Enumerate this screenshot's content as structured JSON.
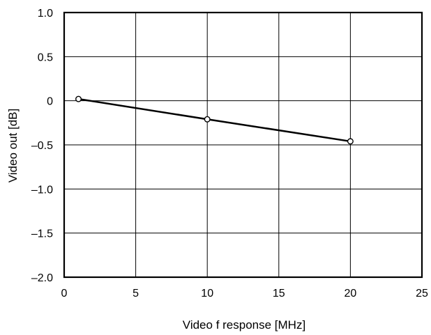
{
  "chart_data": {
    "type": "line",
    "xlabel": "Video f response [MHz]",
    "ylabel": "Video out [dB]",
    "xlim": [
      0,
      25
    ],
    "ylim": [
      -2.0,
      1.0
    ],
    "x_ticks": [
      0,
      5,
      10,
      15,
      20,
      25
    ],
    "x_tick_labels": [
      "0",
      "5",
      "10",
      "15",
      "20",
      "25"
    ],
    "y_ticks": [
      1.0,
      0.5,
      0,
      -0.5,
      -1.0,
      -1.5,
      -2.0
    ],
    "y_tick_labels": [
      "1.0",
      "0.5",
      "0",
      "–0.5",
      "–1.0",
      "–1.5",
      "–2.0"
    ],
    "grid": true,
    "series": [
      {
        "x": [
          1,
          10,
          20
        ],
        "y": [
          0.02,
          -0.21,
          -0.46
        ],
        "marker": "open-circle",
        "color": "#000000"
      }
    ]
  }
}
